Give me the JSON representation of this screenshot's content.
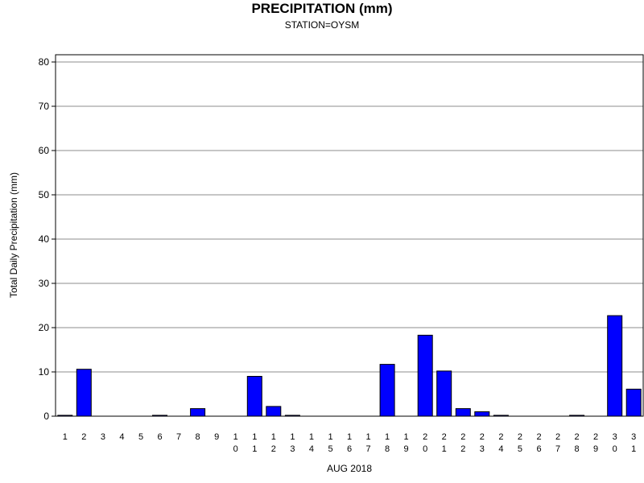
{
  "chart_data": {
    "type": "bar",
    "title": "PRECIPITATION (mm)",
    "subtitle": "STATION=OYSM",
    "xlabel": "AUG 2018",
    "ylabel": "Total Daily Precipitation (mm)",
    "ylim": [
      0,
      80
    ],
    "yticks": [
      "0",
      "10",
      "20",
      "30",
      "40",
      "50",
      "60",
      "70",
      "80"
    ],
    "grid": true,
    "categories": [
      "1",
      "2",
      "3",
      "4",
      "5",
      "6",
      "7",
      "8",
      "9",
      "10",
      "11",
      "12",
      "13",
      "14",
      "15",
      "16",
      "17",
      "18",
      "19",
      "20",
      "21",
      "22",
      "23",
      "24",
      "25",
      "26",
      "27",
      "28",
      "29",
      "30",
      "31"
    ],
    "values": [
      0.2,
      10.6,
      0,
      0,
      0,
      0.2,
      0,
      1.7,
      0,
      0,
      9.0,
      2.2,
      0.2,
      0,
      0,
      0,
      0,
      11.7,
      0,
      18.3,
      10.2,
      1.7,
      1.0,
      0.2,
      0,
      0,
      0,
      0.2,
      0,
      22.7,
      6.1
    ],
    "bar_color": "#0000ff"
  }
}
